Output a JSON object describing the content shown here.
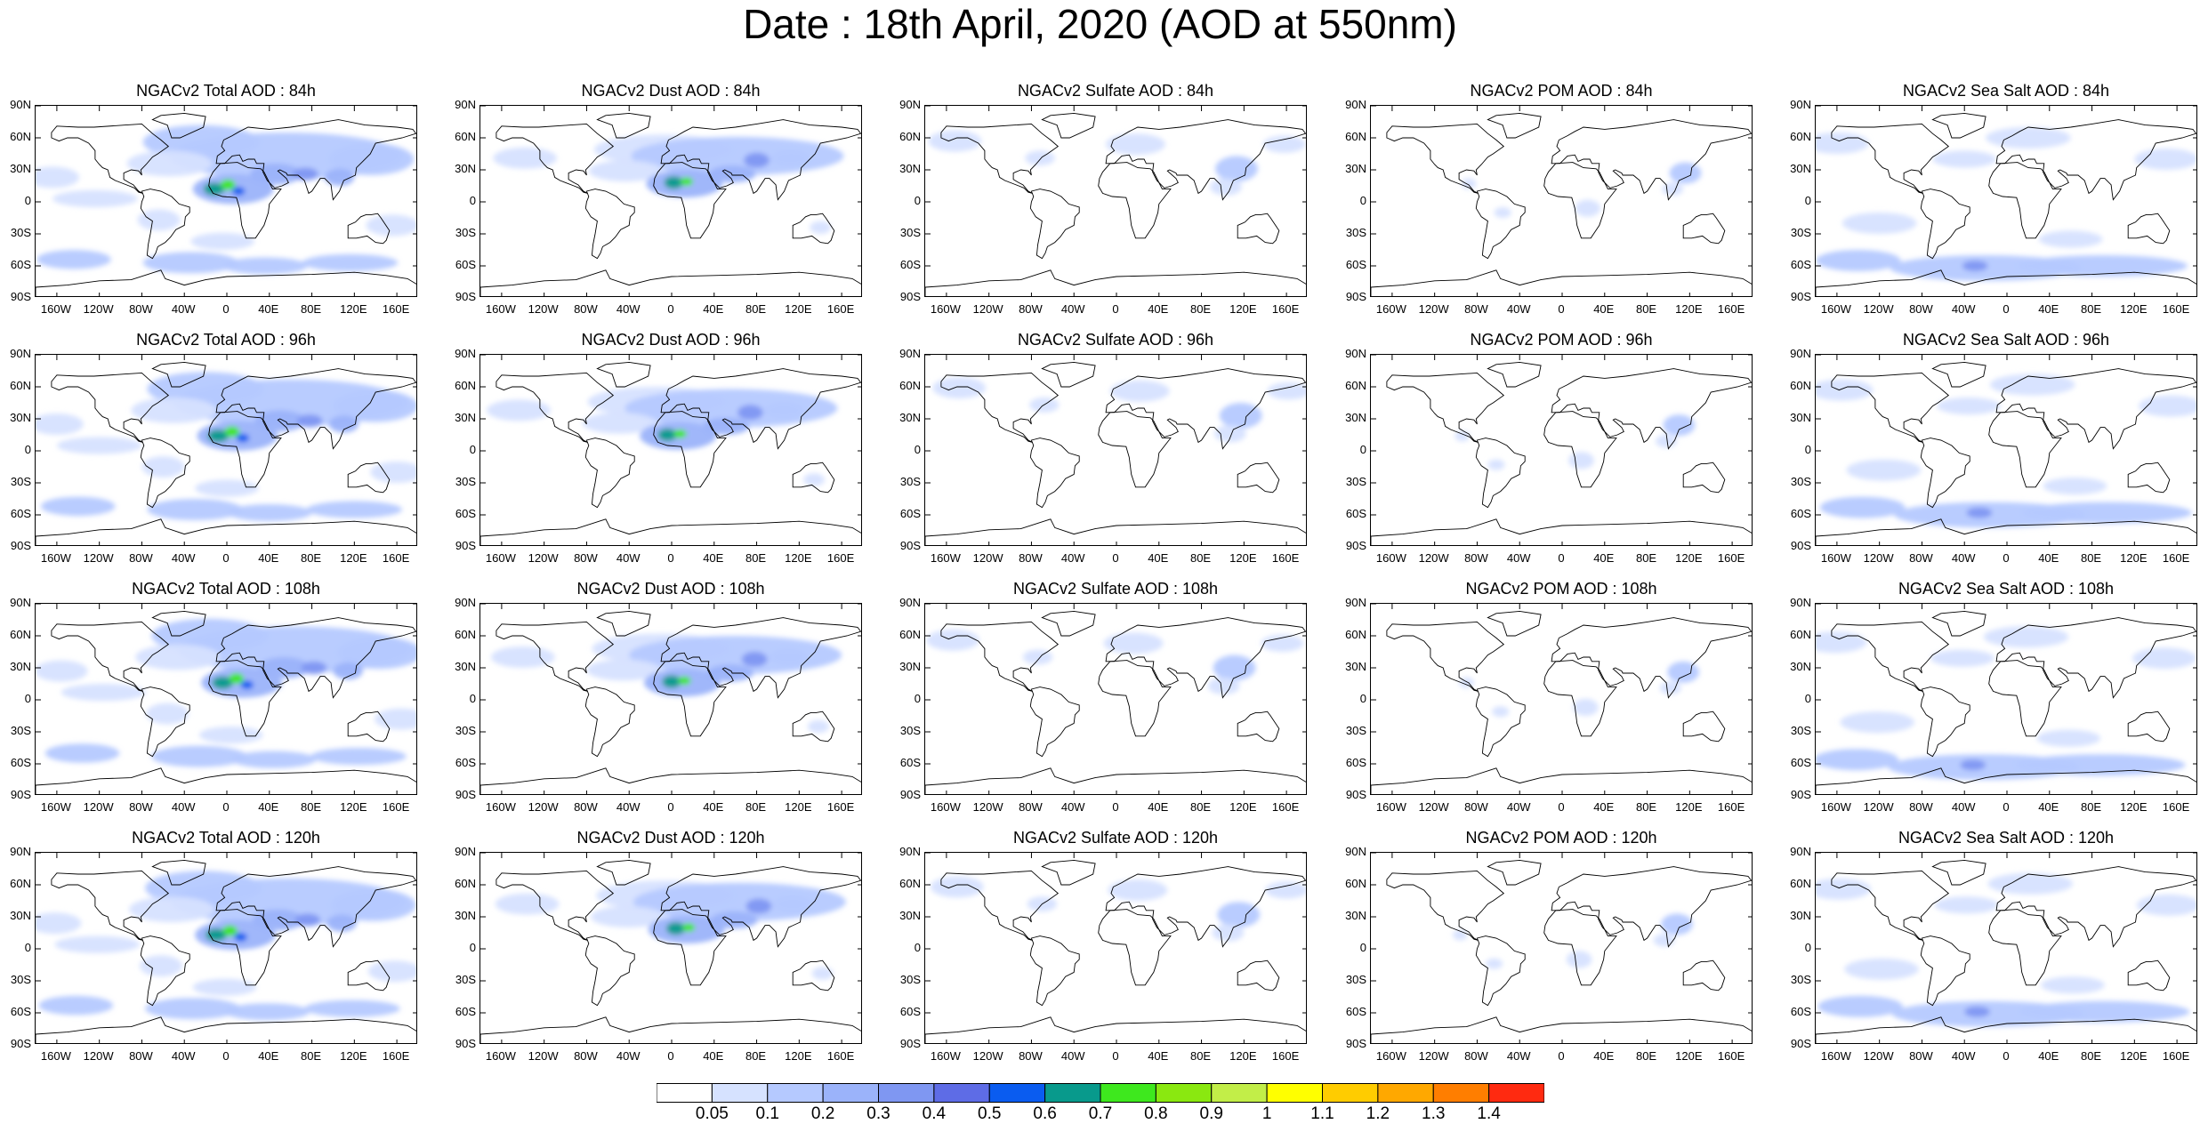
{
  "title": "Date : 18th April, 2020 (AOD at 550nm)",
  "columns": [
    {
      "key": "total",
      "title_prefix": "NGACv2 Total AOD : "
    },
    {
      "key": "dust",
      "title_prefix": "NGACv2 Dust AOD : "
    },
    {
      "key": "sulfate",
      "title_prefix": "NGACv2 Sulfate AOD : "
    },
    {
      "key": "pom",
      "title_prefix": "NGACv2 POM AOD : "
    },
    {
      "key": "seasalt",
      "title_prefix": "NGACv2 Sea Salt AOD : "
    }
  ],
  "panels": [
    [
      "NGACv2 Total AOD : 84h",
      "NGACv2 Dust AOD : 84h",
      "NGACv2 Sulfate AOD : 84h",
      "NGACv2 POM AOD : 84h",
      "NGACv2 Sea Salt AOD : 84h"
    ],
    [
      "NGACv2 Total AOD : 96h",
      "NGACv2 Dust AOD : 96h",
      "NGACv2 Sulfate AOD : 96h",
      "NGACv2 POM AOD : 96h",
      "NGACv2 Sea Salt AOD : 96h"
    ],
    [
      "NGACv2 Total AOD : 108h",
      "NGACv2 Dust AOD : 108h",
      "NGACv2 Sulfate AOD : 108h",
      "NGACv2 POM AOD : 108h",
      "NGACv2 Sea Salt AOD : 108h"
    ],
    [
      "NGACv2 Total AOD : 120h",
      "NGACv2 Dust AOD : 120h",
      "NGACv2 Sulfate AOD : 120h",
      "NGACv2 POM AOD : 120h",
      "NGACv2 Sea Salt  AOD : 120h"
    ]
  ],
  "lat_ticks": [
    "90N",
    "60N",
    "30N",
    "0",
    "30S",
    "60S",
    "90S"
  ],
  "lon_ticks": [
    "160W",
    "120W",
    "80W",
    "40W",
    "0",
    "40E",
    "80E",
    "120E",
    "160E"
  ],
  "lon_tick_values": [
    -160,
    -120,
    -80,
    -40,
    0,
    40,
    80,
    120,
    160
  ],
  "lat_tick_values": [
    90,
    60,
    30,
    0,
    -30,
    -60,
    -90
  ],
  "colorbar": {
    "labels": [
      "0.05",
      "0.1",
      "0.2",
      "0.3",
      "0.4",
      "0.5",
      "0.6",
      "0.7",
      "0.8",
      "0.9",
      "1",
      "1.1",
      "1.2",
      "1.3",
      "1.4"
    ],
    "colors": [
      "#ffffff",
      "#d6e2ff",
      "#b5c9ff",
      "#9bb3fa",
      "#7f97f2",
      "#5e6ce6",
      "#0a5cf0",
      "#089a8c",
      "#3ee81e",
      "#8ae810",
      "#c2ee48",
      "#ffff00",
      "#ffcc00",
      "#ffa800",
      "#ff7e00",
      "#ff2a10"
    ]
  }
}
